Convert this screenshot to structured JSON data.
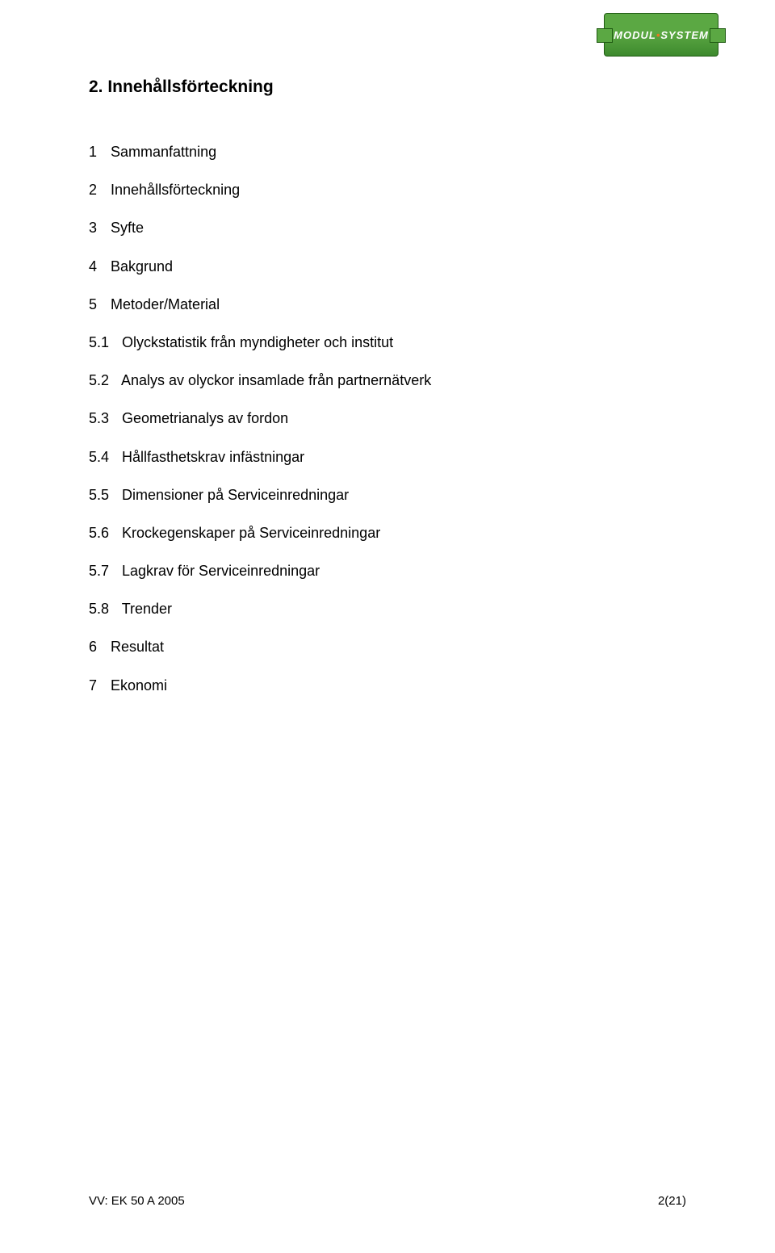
{
  "logo": {
    "text_modul": "MODUL",
    "text_bullet": "•",
    "text_system": "SYSTEM",
    "bg_color": "#5ba843",
    "border_color": "#1f5a12",
    "text_color": "#ffffff",
    "accent_color": "#e87722"
  },
  "heading": "2. Innehållsförteckning",
  "toc": [
    {
      "num": "1",
      "label": "Sammanfattning"
    },
    {
      "num": "2",
      "label": "Innehållsförteckning"
    },
    {
      "num": "3",
      "label": "Syfte"
    },
    {
      "num": "4",
      "label": "Bakgrund"
    },
    {
      "num": "5",
      "label": "Metoder/Material"
    }
  ],
  "toc_sub": [
    {
      "num": "5.1",
      "label": "Olyckstatistik från myndigheter och institut"
    },
    {
      "num": "5.2",
      "label": "Analys av olyckor insamlade från partnernätverk"
    },
    {
      "num": "5.3",
      "label": "Geometrianalys av fordon"
    },
    {
      "num": "5.4",
      "label": "Hållfasthetskrav infästningar"
    },
    {
      "num": "5.5",
      "label": "Dimensioner på Serviceinredningar"
    },
    {
      "num": "5.6",
      "label": "Krockegenskaper på Serviceinredningar"
    },
    {
      "num": "5.7",
      "label": "Lagkrav för Serviceinredningar"
    },
    {
      "num": "5.8",
      "label": "Trender"
    }
  ],
  "toc_tail": [
    {
      "num": "6",
      "label": "Resultat"
    },
    {
      "num": "7",
      "label": "Ekonomi"
    }
  ],
  "footer": {
    "left": "VV: EK 50 A 2005",
    "right": "2(21)"
  },
  "typography": {
    "heading_fontsize": 21,
    "body_fontsize": 18,
    "footer_fontsize": 15,
    "text_color": "#000000",
    "background_color": "#ffffff",
    "font_family": "Arial"
  }
}
